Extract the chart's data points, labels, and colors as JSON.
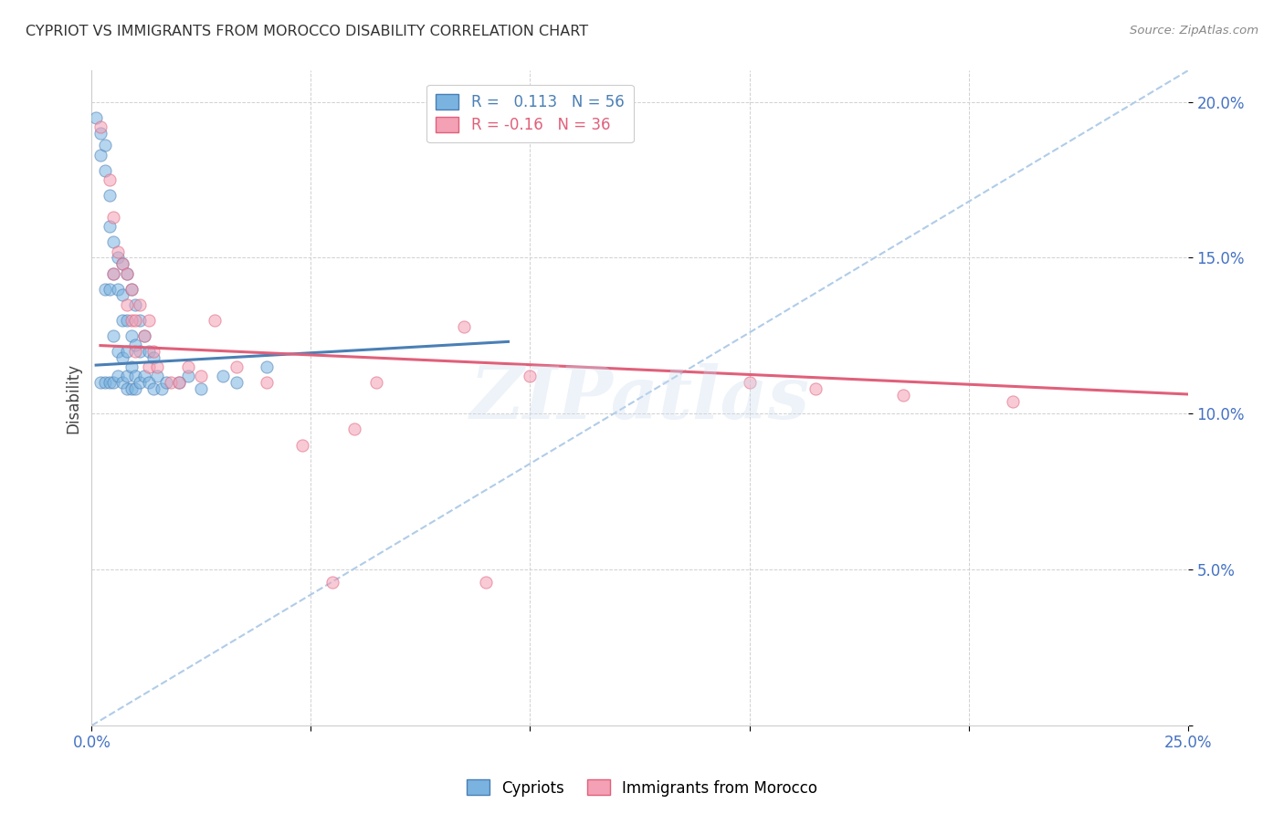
{
  "title": "CYPRIOT VS IMMIGRANTS FROM MOROCCO DISABILITY CORRELATION CHART",
  "source": "Source: ZipAtlas.com",
  "ylabel": "Disability",
  "xlim": [
    0.0,
    0.25
  ],
  "ylim": [
    0.0,
    0.21
  ],
  "blue_R": 0.113,
  "blue_N": 56,
  "pink_R": -0.16,
  "pink_N": 36,
  "blue_color": "#7ab3e0",
  "pink_color": "#f4a0b5",
  "blue_line_color": "#4a7fb5",
  "pink_line_color": "#e0607a",
  "dashed_line_color": "#b0cce8",
  "tick_color": "#4472c4",
  "background_color": "#ffffff",
  "watermark": "ZIPatlas",
  "legend_label_blue": "Cypriots",
  "legend_label_pink": "Immigrants from Morocco",
  "blue_scatter_x": [
    0.001,
    0.002,
    0.002,
    0.002,
    0.003,
    0.003,
    0.003,
    0.003,
    0.004,
    0.004,
    0.004,
    0.004,
    0.005,
    0.005,
    0.005,
    0.005,
    0.006,
    0.006,
    0.006,
    0.006,
    0.007,
    0.007,
    0.007,
    0.007,
    0.007,
    0.008,
    0.008,
    0.008,
    0.008,
    0.008,
    0.009,
    0.009,
    0.009,
    0.009,
    0.01,
    0.01,
    0.01,
    0.01,
    0.011,
    0.011,
    0.011,
    0.012,
    0.012,
    0.013,
    0.013,
    0.014,
    0.014,
    0.015,
    0.016,
    0.017,
    0.02,
    0.022,
    0.025,
    0.03,
    0.033,
    0.04
  ],
  "blue_scatter_y": [
    0.195,
    0.19,
    0.183,
    0.11,
    0.186,
    0.178,
    0.14,
    0.11,
    0.17,
    0.16,
    0.14,
    0.11,
    0.155,
    0.145,
    0.125,
    0.11,
    0.15,
    0.14,
    0.12,
    0.112,
    0.148,
    0.138,
    0.13,
    0.118,
    0.11,
    0.145,
    0.13,
    0.12,
    0.112,
    0.108,
    0.14,
    0.125,
    0.115,
    0.108,
    0.135,
    0.122,
    0.112,
    0.108,
    0.13,
    0.12,
    0.11,
    0.125,
    0.112,
    0.12,
    0.11,
    0.118,
    0.108,
    0.112,
    0.108,
    0.11,
    0.11,
    0.112,
    0.108,
    0.112,
    0.11,
    0.115
  ],
  "pink_scatter_x": [
    0.002,
    0.004,
    0.005,
    0.005,
    0.006,
    0.007,
    0.008,
    0.008,
    0.009,
    0.009,
    0.01,
    0.01,
    0.011,
    0.012,
    0.013,
    0.013,
    0.014,
    0.015,
    0.018,
    0.02,
    0.022,
    0.025,
    0.028,
    0.033,
    0.04,
    0.048,
    0.055,
    0.06,
    0.065,
    0.085,
    0.09,
    0.1,
    0.15,
    0.165,
    0.185,
    0.21
  ],
  "pink_scatter_y": [
    0.192,
    0.175,
    0.163,
    0.145,
    0.152,
    0.148,
    0.145,
    0.135,
    0.14,
    0.13,
    0.13,
    0.12,
    0.135,
    0.125,
    0.13,
    0.115,
    0.12,
    0.115,
    0.11,
    0.11,
    0.115,
    0.112,
    0.13,
    0.115,
    0.11,
    0.09,
    0.046,
    0.095,
    0.11,
    0.128,
    0.046,
    0.112,
    0.11,
    0.108,
    0.106,
    0.104
  ],
  "blue_line_x": [
    0.001,
    0.095
  ],
  "blue_line_y_intercept": 0.1155,
  "blue_line_slope": 0.08,
  "pink_line_x": [
    0.002,
    0.25
  ],
  "pink_line_y_at_0": 0.122,
  "pink_line_slope": -0.063,
  "dashed_line_x": [
    0.0,
    0.25
  ],
  "dashed_line_y": [
    0.0,
    0.21
  ]
}
